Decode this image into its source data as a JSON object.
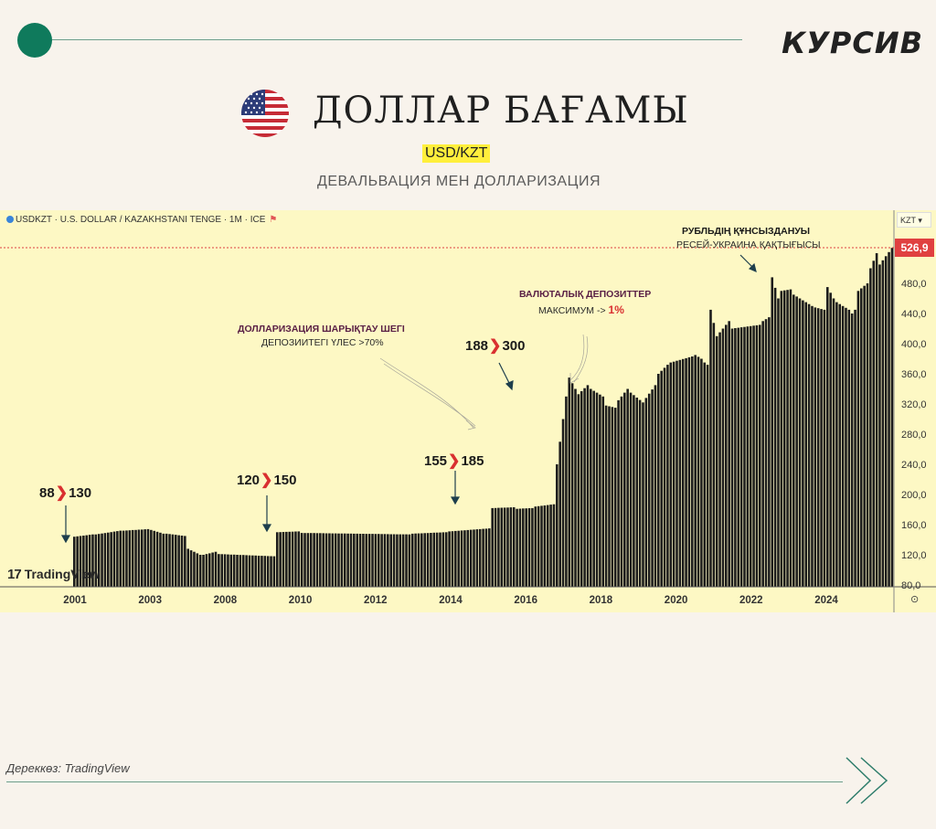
{
  "brand": "КУРСИВ",
  "title": "ДОЛЛАР БАҒАМЫ",
  "pair_label": "USD/KZT",
  "subtitle": "ДЕВАЛЬВАЦИЯ МЕН ДОЛЛАРИЗАЦИЯ",
  "ticker": "USDKZT · U.S. DOLLAR / KAZAKHSTANI TENGE · 1M · ICE",
  "currency_select": "KZT",
  "platform_logo": "TradingView",
  "source_label": "Дереккөз: TradingView",
  "icons": {
    "flag": "us-flag-icon",
    "ticker": "ticker-dot-icon",
    "next": "chevron-right-icon",
    "settings": "gear-icon"
  },
  "colors": {
    "accent_green": "#0f7a5c",
    "panel": "#fdf8c4",
    "bars": "#1b1b1b",
    "price_tag": "#e04040",
    "highlight": "#ffef3c"
  },
  "chart_data": {
    "type": "bar",
    "ylabel": "KZT",
    "yticks": [
      80.0,
      120.0,
      160.0,
      200.0,
      240.0,
      280.0,
      320.0,
      360.0,
      400.0,
      440.0,
      480.0
    ],
    "ylim": [
      80,
      530
    ],
    "x_tick_labels": [
      "2001",
      "2003",
      "2008",
      "2010",
      "2012",
      "2014",
      "2016",
      "2018",
      "2020",
      "2022",
      "2024"
    ],
    "last_price": "526,9",
    "grid": false,
    "legend": "none",
    "segments": [
      {
        "from": 144,
        "to": 147,
        "n": 7
      },
      {
        "from": 147,
        "to": 152,
        "n": 9
      },
      {
        "from": 152,
        "to": 154,
        "n": 9
      },
      {
        "from": 153,
        "to": 148,
        "n": 5
      },
      {
        "from": 148,
        "to": 145,
        "n": 7
      },
      {
        "from": 128,
        "to": 120,
        "n": 5
      },
      {
        "from": 120,
        "to": 124,
        "n": 5
      },
      {
        "from": 121,
        "to": 118,
        "n": 19
      },
      {
        "from": 150,
        "to": 151,
        "n": 8
      },
      {
        "from": 149,
        "to": 147,
        "n": 36
      },
      {
        "from": 148,
        "to": 150,
        "n": 12
      },
      {
        "from": 151,
        "to": 155,
        "n": 14
      },
      {
        "from": 182,
        "to": 183,
        "n": 8
      },
      {
        "from": 181,
        "to": 182,
        "n": 6
      },
      {
        "from": 184,
        "to": 187,
        "n": 7
      },
      {
        "from": 240,
        "to": 330,
        "n": 4
      },
      {
        "from": 355,
        "to": 340,
        "n": 3
      },
      {
        "from": 333,
        "to": 345,
        "n": 4
      },
      {
        "from": 340,
        "to": 330,
        "n": 5
      },
      {
        "from": 318,
        "to": 315,
        "n": 4
      },
      {
        "from": 325,
        "to": 340,
        "n": 4
      },
      {
        "from": 335,
        "to": 322,
        "n": 5
      },
      {
        "from": 328,
        "to": 345,
        "n": 4
      },
      {
        "from": 360,
        "to": 372,
        "n": 4
      },
      {
        "from": 375,
        "to": 383,
        "n": 8
      },
      {
        "from": 385,
        "to": 380,
        "n": 3
      },
      {
        "from": 375,
        "to": 372,
        "n": 2
      },
      {
        "from": 445,
        "to": 410,
        "n": 3
      },
      {
        "from": 415,
        "to": 430,
        "n": 4
      },
      {
        "from": 420,
        "to": 425,
        "n": 10
      },
      {
        "from": 430,
        "to": 435,
        "n": 3
      },
      {
        "from": 488,
        "to": 460,
        "n": 3
      },
      {
        "from": 470,
        "to": 472,
        "n": 4
      },
      {
        "from": 465,
        "to": 450,
        "n": 7
      },
      {
        "from": 448,
        "to": 445,
        "n": 4
      },
      {
        "from": 475,
        "to": 460,
        "n": 3
      },
      {
        "from": 455,
        "to": 445,
        "n": 5
      },
      {
        "from": 440,
        "to": 445,
        "n": 2
      },
      {
        "from": 470,
        "to": 480,
        "n": 4
      },
      {
        "from": 500,
        "to": 520,
        "n": 3
      },
      {
        "from": 505,
        "to": 527,
        "n": 5
      }
    ]
  },
  "annotations": [
    {
      "from": "88",
      "to": "130"
    },
    {
      "from": "120",
      "to": "150"
    },
    {
      "from": "155",
      "to": "185"
    },
    {
      "from": "188",
      "to": "300"
    }
  ],
  "notes": {
    "dollarization_title": "ДОЛЛАРИЗАЦИЯ ШАРЫҚТАУ ШЕГІ",
    "dollarization_sub": "ДЕПОЗИИТЕГІ ҮЛЕС  >70%",
    "fx_deposits_title": "ВАЛЮТАЛЫҚ ДЕПОЗИТТЕР",
    "fx_deposits_sub": "МАКСИМУМ ->",
    "fx_deposits_value": "1%",
    "ruble_title": "РУБЛЬДІҢ ҚҰНСЫЗДАНУЫ",
    "ruble_sub": "РЕСЕЙ-УКРАИНА ҚАҚТЫҒЫСЫ"
  }
}
